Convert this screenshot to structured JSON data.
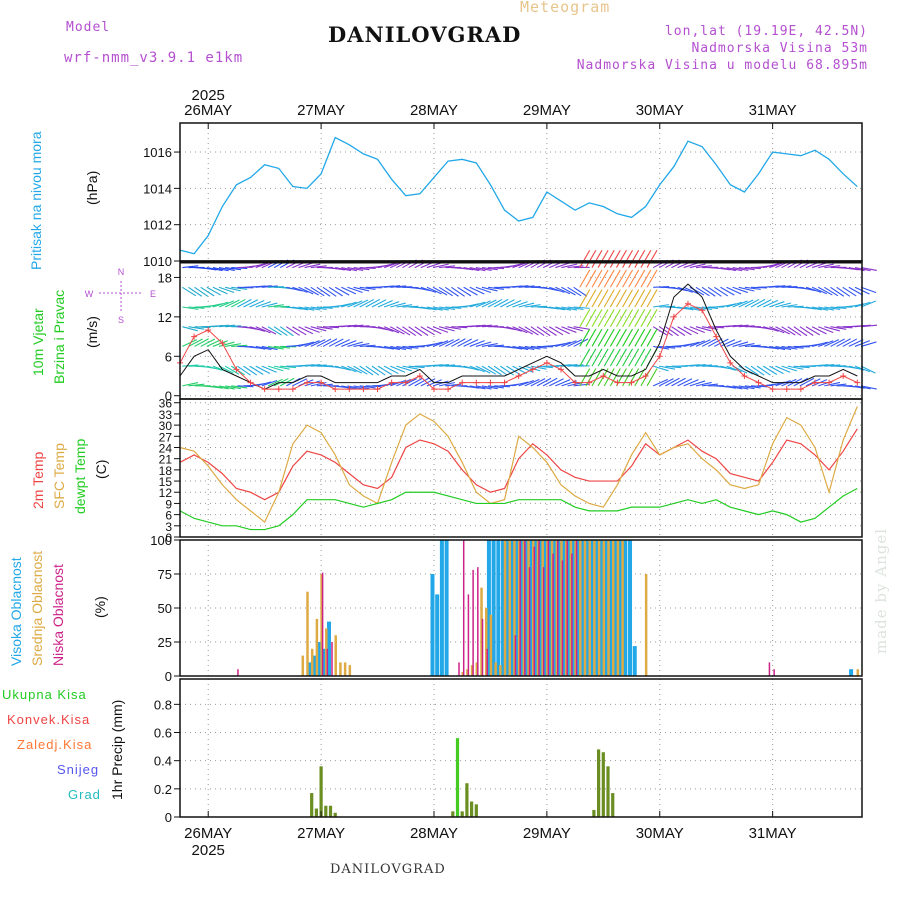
{
  "header": {
    "model_label": "Model",
    "model_value": "wrf-nmm_v3.9.1 e1km",
    "station": "DANILOVGRAD",
    "meteogram": "Meteogram",
    "lonlat": "lon,lat (19.19E, 42.5N)",
    "elevation": "Nadmorska Visina 53m",
    "model_elevation": "Nadmorska Visina u modelu 68.895m"
  },
  "footer": {
    "station": "DANILOVGRAD"
  },
  "watermark": "made by Angel",
  "colors": {
    "pressure": "#22a8e8",
    "wind_green": "#22cc22",
    "temp_2m": "#ee4444",
    "temp_sfc": "#ddaa44",
    "dewpoint": "#22cc22",
    "cloud_high": "#22a8e8",
    "cloud_mid": "#ddaa44",
    "cloud_low": "#cc2288",
    "precip": "#6b8e23",
    "purple": "#b44fd0"
  },
  "chart_data": [
    {
      "type": "line",
      "panel": "pressure",
      "ylabel": "Pritisak na nivou mora",
      "units": "(hPa)",
      "top_axis": {
        "year": "2025",
        "days": [
          "26MAY",
          "27MAY",
          "28MAY",
          "29MAY",
          "30MAY",
          "31MAY"
        ]
      },
      "yticks": [
        1010,
        1012,
        1014,
        1016
      ],
      "ylim": [
        1010,
        1017.6
      ],
      "grid": true,
      "x_hours": [
        0,
        3,
        6,
        9,
        12,
        15,
        18,
        21,
        24,
        27,
        30,
        33,
        36,
        39,
        42,
        45,
        48,
        51,
        54,
        57,
        60,
        63,
        66,
        69,
        72,
        75,
        78,
        81,
        84,
        87,
        90,
        93,
        96,
        99,
        102,
        105,
        108,
        111,
        114,
        117,
        120,
        123,
        126,
        129,
        132,
        135,
        138,
        141,
        144
      ],
      "series": [
        {
          "values": [
            1010.6,
            1010.4,
            1011.4,
            1013.0,
            1014.2,
            1014.6,
            1015.3,
            1015.1,
            1014.1,
            1014.0,
            1014.8,
            1016.8,
            1016.4,
            1015.9,
            1015.6,
            1014.5,
            1013.6,
            1013.7,
            1014.6,
            1015.5,
            1015.6,
            1015.4,
            1014.2,
            1012.8,
            1012.2,
            1012.4,
            1013.8,
            1013.3,
            1012.8,
            1013.2,
            1013.0,
            1012.6,
            1012.4,
            1013.0,
            1014.2,
            1015.2,
            1016.6,
            1016.3,
            1015.3,
            1014.2,
            1013.8,
            1014.8,
            1016.0,
            1015.9,
            1015.8,
            1016.1,
            1015.6,
            1014.8,
            1014.1
          ]
        }
      ]
    },
    {
      "type": "scatter",
      "panel": "wind",
      "ylabel": [
        "10m Vjetar",
        "Brzina i Pravac"
      ],
      "units": "(m/s)",
      "compass": [
        "N",
        "E",
        "W",
        "S"
      ],
      "yticks": [
        0,
        6,
        12,
        18
      ],
      "ylim": [
        -0.5,
        20.5
      ],
      "grid": true,
      "barb_levels": [
        19.5,
        16.5,
        13.5,
        10.5,
        7.5,
        4.5,
        1.5
      ],
      "x_hours": [
        0,
        3,
        6,
        9,
        12,
        15,
        18,
        21,
        24,
        27,
        30,
        33,
        36,
        39,
        42,
        45,
        48,
        51,
        54,
        57,
        60,
        63,
        66,
        69,
        72,
        75,
        78,
        81,
        84,
        87,
        90,
        93,
        96,
        99,
        102,
        105,
        108,
        111,
        114,
        117,
        120,
        123,
        126,
        129,
        132,
        135,
        138,
        141,
        144
      ],
      "series": [
        {
          "name": "speed",
          "values": [
            5,
            9,
            10,
            8,
            4,
            2,
            1,
            1,
            1,
            2,
            2,
            1,
            1,
            1,
            1,
            2,
            2,
            3,
            1,
            1,
            2,
            2,
            2,
            2,
            3,
            4,
            5,
            4,
            2,
            2,
            3,
            2,
            2,
            3,
            6,
            12,
            14,
            13,
            9,
            5,
            3,
            2,
            1,
            1,
            1,
            2,
            2,
            3,
            2
          ]
        },
        {
          "name": "gust",
          "values": [
            3,
            6,
            7,
            4,
            3,
            2,
            1,
            2,
            2,
            3,
            3,
            2,
            2,
            2,
            2,
            3,
            3,
            4,
            2,
            2,
            3,
            3,
            3,
            3,
            4,
            5,
            6,
            5,
            3,
            3,
            4,
            3,
            3,
            4,
            8,
            15,
            17,
            15,
            10,
            6,
            4,
            3,
            2,
            2,
            2,
            3,
            3,
            4,
            3
          ]
        }
      ]
    },
    {
      "type": "line",
      "panel": "temperature",
      "ylabel": [
        "2m Temp",
        "SFC Temp",
        "dewpt Temp"
      ],
      "units": "(C)",
      "yticks": [
        0,
        3,
        6,
        9,
        12,
        15,
        18,
        21,
        24,
        27,
        30,
        33,
        36
      ],
      "ylim": [
        0,
        37
      ],
      "grid": true,
      "x_hours": [
        0,
        3,
        6,
        9,
        12,
        15,
        18,
        21,
        24,
        27,
        30,
        33,
        36,
        39,
        42,
        45,
        48,
        51,
        54,
        57,
        60,
        63,
        66,
        69,
        72,
        75,
        78,
        81,
        84,
        87,
        90,
        93,
        96,
        99,
        102,
        105,
        108,
        111,
        114,
        117,
        120,
        123,
        126,
        129,
        132,
        135,
        138,
        141,
        144
      ],
      "series": [
        {
          "name": "2m Temp",
          "values": [
            20,
            22,
            20,
            17,
            13,
            12,
            10,
            12,
            19,
            23,
            22,
            20,
            17,
            14,
            13,
            16,
            24,
            26,
            25,
            23,
            18,
            14,
            12,
            13,
            21,
            25,
            22,
            18,
            16,
            15,
            15,
            15,
            19,
            25,
            22,
            24,
            26,
            23,
            21,
            17,
            16,
            15,
            20,
            26,
            25,
            22,
            18,
            23,
            29
          ]
        },
        {
          "name": "SFC Temp",
          "values": [
            24,
            23,
            19,
            14,
            10,
            7,
            4,
            12,
            25,
            30,
            28,
            22,
            14,
            11,
            9,
            20,
            30,
            33,
            31,
            27,
            20,
            12,
            9,
            10,
            27,
            24,
            20,
            14,
            11,
            9,
            8,
            14,
            22,
            28,
            22,
            24,
            25,
            21,
            18,
            14,
            13,
            14,
            25,
            32,
            30,
            24,
            12,
            26,
            35
          ]
        },
        {
          "name": "dewpt Temp",
          "values": [
            7,
            5,
            4,
            3,
            3,
            2,
            2,
            3,
            6,
            10,
            10,
            10,
            9,
            8,
            9,
            10,
            12,
            12,
            12,
            11,
            10,
            9,
            9,
            9,
            10,
            10,
            10,
            10,
            8,
            7,
            7,
            7,
            8,
            8,
            8,
            9,
            10,
            9,
            10,
            8,
            7,
            6,
            7,
            6,
            4,
            5,
            8,
            11,
            13
          ]
        }
      ]
    },
    {
      "type": "bar",
      "panel": "clouds",
      "ylabel": [
        "Visoka Oblacnost",
        "Srednja Oblacnost",
        "Niska Oblacnost"
      ],
      "units": "(%)",
      "yticks": [
        0,
        25,
        50,
        75,
        100
      ],
      "ylim": [
        0,
        100
      ],
      "grid": true,
      "series": [
        {
          "name": "Visoka Oblacnost",
          "bars": [
            [
              28,
              10
            ],
            [
              29,
              15
            ],
            [
              30,
              25
            ],
            [
              31,
              20
            ],
            [
              32,
              40
            ],
            [
              54,
              75
            ],
            [
              55,
              60
            ],
            [
              56,
              100
            ],
            [
              57,
              100
            ],
            [
              66,
              100
            ],
            [
              67,
              100
            ],
            [
              68,
              100
            ],
            [
              69,
              100
            ],
            [
              70,
              100
            ],
            [
              71,
              100
            ],
            [
              72,
              100
            ],
            [
              73,
              100
            ],
            [
              74,
              100
            ],
            [
              75,
              100
            ],
            [
              76,
              100
            ],
            [
              77,
              100
            ],
            [
              78,
              100
            ],
            [
              79,
              100
            ],
            [
              80,
              100
            ],
            [
              81,
              100
            ],
            [
              82,
              100
            ],
            [
              83,
              100
            ],
            [
              84,
              100
            ],
            [
              85,
              100
            ],
            [
              86,
              100
            ],
            [
              87,
              100
            ],
            [
              88,
              100
            ],
            [
              89,
              100
            ],
            [
              90,
              100
            ],
            [
              91,
              100
            ],
            [
              92,
              100
            ],
            [
              93,
              100
            ],
            [
              94,
              100
            ],
            [
              95,
              100
            ],
            [
              96,
              100
            ],
            [
              97,
              22
            ],
            [
              143,
              5
            ]
          ]
        },
        {
          "name": "Srednja Oblacnost",
          "bars": [
            [
              26,
              15
            ],
            [
              27,
              62
            ],
            [
              28,
              20
            ],
            [
              29,
              42
            ],
            [
              30,
              75
            ],
            [
              31,
              35
            ],
            [
              33,
              30
            ],
            [
              34,
              10
            ],
            [
              35,
              10
            ],
            [
              36,
              8
            ],
            [
              60,
              3
            ],
            [
              61,
              5
            ],
            [
              62,
              8
            ],
            [
              63,
              10
            ],
            [
              64,
              65
            ],
            [
              65,
              50
            ],
            [
              66,
              45
            ],
            [
              67,
              10
            ],
            [
              68,
              8
            ],
            [
              69,
              100
            ],
            [
              70,
              100
            ],
            [
              71,
              100
            ],
            [
              72,
              100
            ],
            [
              73,
              100
            ],
            [
              74,
              100
            ],
            [
              75,
              100
            ],
            [
              76,
              100
            ],
            [
              77,
              100
            ],
            [
              78,
              100
            ],
            [
              79,
              100
            ],
            [
              80,
              100
            ],
            [
              81,
              100
            ],
            [
              82,
              100
            ],
            [
              83,
              100
            ],
            [
              84,
              100
            ],
            [
              85,
              100
            ],
            [
              86,
              100
            ],
            [
              87,
              100
            ],
            [
              88,
              100
            ],
            [
              89,
              100
            ],
            [
              90,
              100
            ],
            [
              91,
              100
            ],
            [
              92,
              100
            ],
            [
              93,
              100
            ],
            [
              94,
              100
            ],
            [
              99,
              75
            ],
            [
              144,
              5
            ]
          ]
        },
        {
          "name": "Niska Oblacnost",
          "bars": [
            [
              12,
              5
            ],
            [
              30,
              76
            ],
            [
              31,
              20
            ],
            [
              32,
              25
            ],
            [
              59,
              10
            ],
            [
              60,
              100
            ],
            [
              61,
              60
            ],
            [
              62,
              78
            ],
            [
              63,
              80
            ],
            [
              64,
              42
            ],
            [
              65,
              20
            ],
            [
              71,
              30
            ],
            [
              72,
              100
            ],
            [
              73,
              100
            ],
            [
              74,
              80
            ],
            [
              75,
              95
            ],
            [
              76,
              100
            ],
            [
              77,
              80
            ],
            [
              78,
              100
            ],
            [
              79,
              90
            ],
            [
              80,
              100
            ],
            [
              81,
              85
            ],
            [
              82,
              100
            ],
            [
              83,
              90
            ],
            [
              84,
              100
            ],
            [
              125,
              10
            ],
            [
              126,
              5
            ]
          ]
        }
      ]
    },
    {
      "type": "bar",
      "panel": "precip",
      "legend": [
        "Ukupna Kisa",
        "Konvek.Kisa",
        "Zaledj.Kisa",
        "Snijeg",
        "Grad"
      ],
      "ylabel": "1hr Precip (mm)",
      "yticks": [
        0,
        0.2,
        0.4,
        0.6,
        0.8
      ],
      "ylim": [
        0,
        0.98
      ],
      "grid": true,
      "bottom_axis": {
        "year": "2025",
        "days": [
          "26MAY",
          "27MAY",
          "28MAY",
          "29MAY",
          "30MAY",
          "31MAY"
        ]
      },
      "x": [
        28,
        29,
        30,
        31,
        32,
        33,
        58,
        59,
        60,
        61,
        62,
        63,
        88,
        89,
        90,
        91,
        92
      ],
      "values": [
        0.17,
        0.06,
        0.36,
        0.08,
        0.08,
        0.03,
        0.04,
        0.56,
        0.04,
        0.24,
        0.11,
        0.09,
        0.05,
        0.48,
        0.46,
        0.36,
        0.17
      ]
    }
  ]
}
